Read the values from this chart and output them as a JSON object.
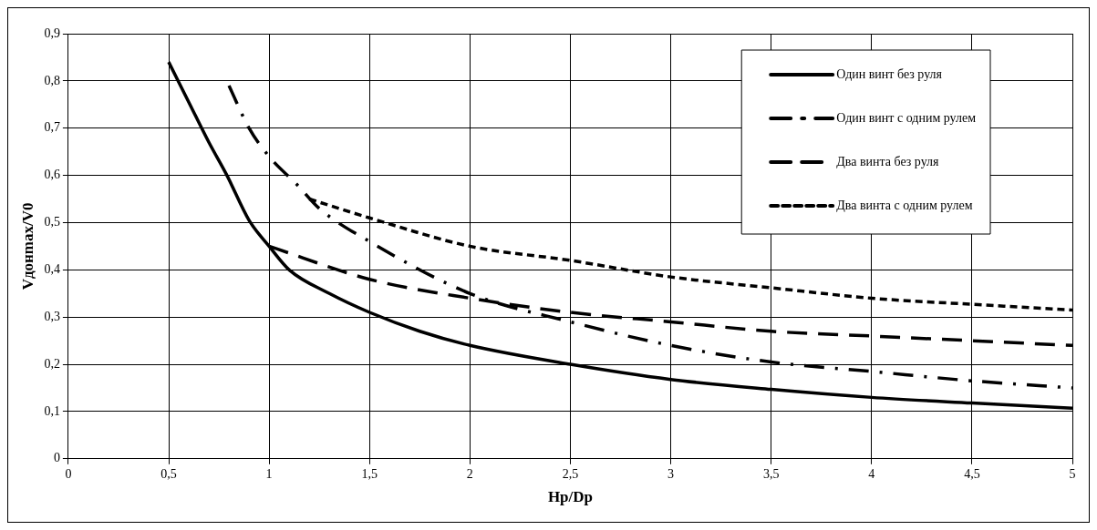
{
  "chart_data": {
    "type": "line",
    "xlabel": "Hp/Dp",
    "ylabel": "Vдонmax/V0",
    "xlim": [
      0,
      5
    ],
    "ylim": [
      0,
      0.9
    ],
    "xticks": [
      0,
      {
        "value": 0.5,
        "label": "0,5"
      },
      1,
      {
        "value": 1.5,
        "label": "1,5"
      },
      2,
      {
        "value": 2.5,
        "label": "2,5"
      },
      3,
      {
        "value": 3.5,
        "label": "3,5"
      },
      4,
      {
        "value": 4.5,
        "label": "4,5"
      },
      5
    ],
    "yticks": [
      0,
      {
        "value": 0.1,
        "label": "0,1"
      },
      {
        "value": 0.2,
        "label": "0,2"
      },
      {
        "value": 0.3,
        "label": "0,3"
      },
      {
        "value": 0.4,
        "label": "0,4"
      },
      {
        "value": 0.5,
        "label": "0,5"
      },
      {
        "value": 0.6,
        "label": "0,6"
      },
      {
        "value": 0.7,
        "label": "0,7"
      },
      {
        "value": 0.8,
        "label": "0,8"
      },
      {
        "value": 0.9,
        "label": "0,9"
      }
    ],
    "grid": true,
    "legend": "top right",
    "marker": "none",
    "series": [
      {
        "name": "Один винт без руля",
        "color": "#000000",
        "line_style": "solid",
        "x": [
          0.5,
          0.6,
          0.7,
          0.79,
          0.9,
          1.0,
          1.1,
          1.3,
          1.5,
          1.75,
          2,
          2.5,
          3,
          3.5,
          4,
          4.5,
          5
        ],
        "values": [
          0.84,
          0.755,
          0.67,
          0.6,
          0.505,
          0.45,
          0.4,
          0.35,
          0.31,
          0.27,
          0.24,
          0.2,
          0.168,
          0.147,
          0.13,
          0.118,
          0.107
        ]
      },
      {
        "name": "Один винт с одним рулем",
        "color": "#000000",
        "line_style": "dashed",
        "x": [
          0.8,
          0.9,
          1.0,
          1.14,
          1.25,
          1.5,
          2,
          2.5,
          3,
          3.5,
          4,
          4.5,
          5
        ],
        "values": [
          0.79,
          0.7,
          0.64,
          0.58,
          0.53,
          0.46,
          0.35,
          0.29,
          0.24,
          0.205,
          0.185,
          0.165,
          0.15
        ]
      },
      {
        "name": "Два винта без руля",
        "color": "#000000",
        "line_style": "dashed",
        "x": [
          1,
          1.5,
          2,
          2.5,
          3,
          3.5,
          4,
          4.5,
          5
        ],
        "values": [
          0.45,
          0.38,
          0.34,
          0.31,
          0.29,
          0.27,
          0.26,
          0.25,
          0.24
        ]
      },
      {
        "name": "Два винта с одним рулем",
        "color": "#000000",
        "line_style": "dotted",
        "x": [
          1.2,
          1.5,
          2,
          2.5,
          3,
          3.5,
          4,
          4.5,
          5
        ],
        "values": [
          0.55,
          0.51,
          0.45,
          0.42,
          0.385,
          0.362,
          0.34,
          0.327,
          0.315
        ]
      }
    ]
  }
}
